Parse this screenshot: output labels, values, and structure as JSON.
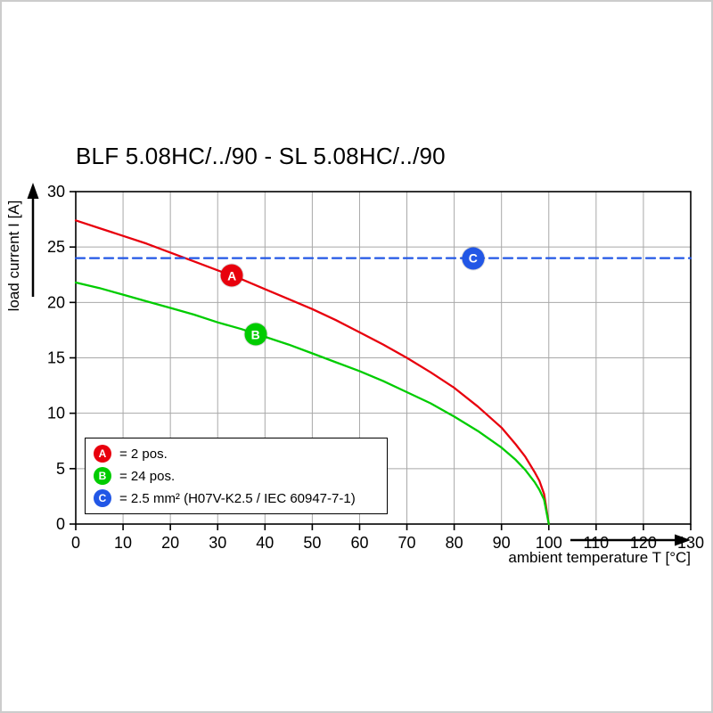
{
  "title": "BLF 5.08HC/../90 - SL 5.08HC/../90",
  "chart_data": {
    "type": "line",
    "title": "BLF 5.08HC/../90 - SL 5.08HC/../90",
    "xlabel": "ambient temperature T [°C]",
    "ylabel": "load current I [A]",
    "xlim": [
      0,
      130
    ],
    "ylim": [
      0,
      30
    ],
    "x_ticks": [
      0,
      10,
      20,
      30,
      40,
      50,
      60,
      70,
      80,
      90,
      100,
      110,
      120,
      130
    ],
    "y_ticks": [
      0,
      5,
      10,
      15,
      20,
      25,
      30
    ],
    "grid": true,
    "grid_color": "#a8a8a8",
    "frame_color": "#000000",
    "legend_position": "lower-left-inside",
    "series": [
      {
        "name": "A",
        "label": "= 2 pos.",
        "color": "#e8000d",
        "style": "solid",
        "points": [
          [
            0,
            27.4
          ],
          [
            5,
            26.7
          ],
          [
            10,
            26.0
          ],
          [
            15,
            25.3
          ],
          [
            20,
            24.5
          ],
          [
            25,
            23.7
          ],
          [
            30,
            22.9
          ],
          [
            35,
            22.1
          ],
          [
            40,
            21.2
          ],
          [
            45,
            20.3
          ],
          [
            50,
            19.4
          ],
          [
            55,
            18.4
          ],
          [
            60,
            17.3
          ],
          [
            65,
            16.2
          ],
          [
            70,
            15.0
          ],
          [
            75,
            13.7
          ],
          [
            80,
            12.3
          ],
          [
            85,
            10.6
          ],
          [
            90,
            8.7
          ],
          [
            93,
            7.2
          ],
          [
            95,
            6.1
          ],
          [
            97,
            4.7
          ],
          [
            98,
            3.9
          ],
          [
            99,
            2.7
          ],
          [
            100,
            0
          ]
        ]
      },
      {
        "name": "B",
        "label": "= 24 pos.",
        "color": "#00cc00",
        "style": "solid",
        "points": [
          [
            0,
            21.8
          ],
          [
            5,
            21.3
          ],
          [
            10,
            20.7
          ],
          [
            15,
            20.1
          ],
          [
            20,
            19.5
          ],
          [
            25,
            18.9
          ],
          [
            30,
            18.2
          ],
          [
            35,
            17.6
          ],
          [
            40,
            16.9
          ],
          [
            45,
            16.2
          ],
          [
            50,
            15.4
          ],
          [
            55,
            14.6
          ],
          [
            60,
            13.8
          ],
          [
            65,
            12.9
          ],
          [
            70,
            11.9
          ],
          [
            75,
            10.9
          ],
          [
            80,
            9.7
          ],
          [
            85,
            8.4
          ],
          [
            90,
            6.9
          ],
          [
            93,
            5.8
          ],
          [
            95,
            4.9
          ],
          [
            97,
            3.8
          ],
          [
            98,
            3.1
          ],
          [
            99,
            2.2
          ],
          [
            100,
            0
          ]
        ]
      },
      {
        "name": "C",
        "label": "= 2.5 mm² (H07V-K2.5 / IEC 60947-7-1)",
        "color": "#2257e6",
        "style": "dashed",
        "points": [
          [
            0,
            24
          ],
          [
            130,
            24
          ]
        ]
      }
    ],
    "markers": [
      {
        "series": "A",
        "letter": "A",
        "x": 33,
        "y": 22.4
      },
      {
        "series": "B",
        "letter": "B",
        "x": 38,
        "y": 17.1
      },
      {
        "series": "C",
        "letter": "C",
        "x": 84,
        "y": 24
      }
    ]
  },
  "legend": {
    "items": [
      {
        "letter": "A",
        "color": "#e8000d",
        "text": "= 2 pos."
      },
      {
        "letter": "B",
        "color": "#00cc00",
        "text": "= 24 pos."
      },
      {
        "letter": "C",
        "color": "#2257e6",
        "text": "= 2.5 mm² (H07V-K2.5 / IEC 60947-7-1)"
      }
    ]
  }
}
